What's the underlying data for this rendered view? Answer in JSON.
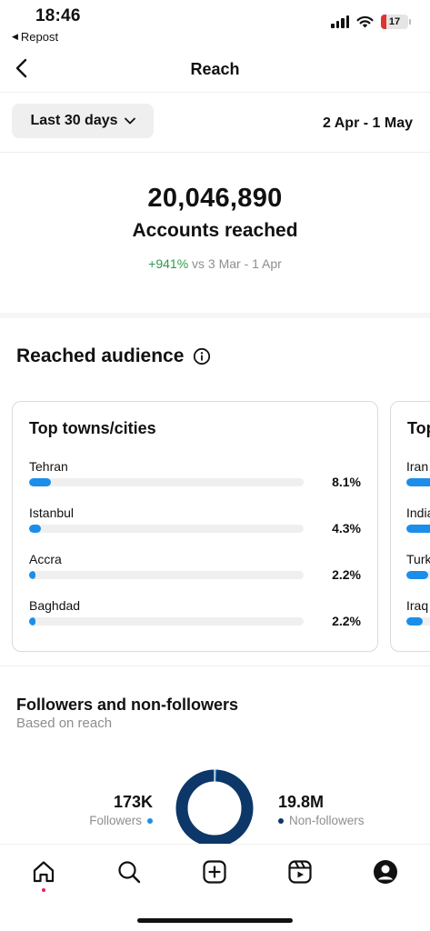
{
  "status_bar": {
    "time": "18:46",
    "back_app": "Repost",
    "battery_level": "17"
  },
  "header": {
    "title": "Reach"
  },
  "filter": {
    "period": "Last 30 days",
    "date_range": "2 Apr - 1 May"
  },
  "summary": {
    "value": "20,046,890",
    "label": "Accounts reached",
    "change": "+941%",
    "compare_text": "vs 3 Mar - 1 Apr"
  },
  "audience": {
    "title": "Reached audience",
    "cities": {
      "title": "Top towns/cities",
      "rows": [
        {
          "label": "Tehran",
          "pct": "8.1%",
          "fill": 0.081
        },
        {
          "label": "Istanbul",
          "pct": "4.3%",
          "fill": 0.043
        },
        {
          "label": "Accra",
          "pct": "2.2%",
          "fill": 0.022
        },
        {
          "label": "Baghdad",
          "pct": "2.2%",
          "fill": 0.022
        }
      ]
    },
    "countries": {
      "title": "Top",
      "rows": [
        {
          "label": "Iran",
          "fill": 0.6
        },
        {
          "label": "India",
          "fill": 0.25
        },
        {
          "label": "Turk",
          "fill": 0.2
        },
        {
          "label": "Iraq",
          "fill": 0.15
        }
      ]
    }
  },
  "followers": {
    "title": "Followers and non-followers",
    "subtitle": "Based on reach",
    "followers_value": "173K",
    "followers_label": "Followers",
    "non_followers_value": "19.8M",
    "non_followers_label": "Non-followers",
    "followers_share": 0.0086
  },
  "colors": {
    "bar": "#1c8ee9",
    "followers_dot": "#1c8ee9",
    "non_followers": "#0c3768",
    "positive": "#2e9a4b",
    "notification": "#ed1f4f"
  },
  "nav": {
    "items": [
      "home-icon",
      "search-icon",
      "create-icon",
      "reels-icon",
      "profile-icon"
    ]
  }
}
